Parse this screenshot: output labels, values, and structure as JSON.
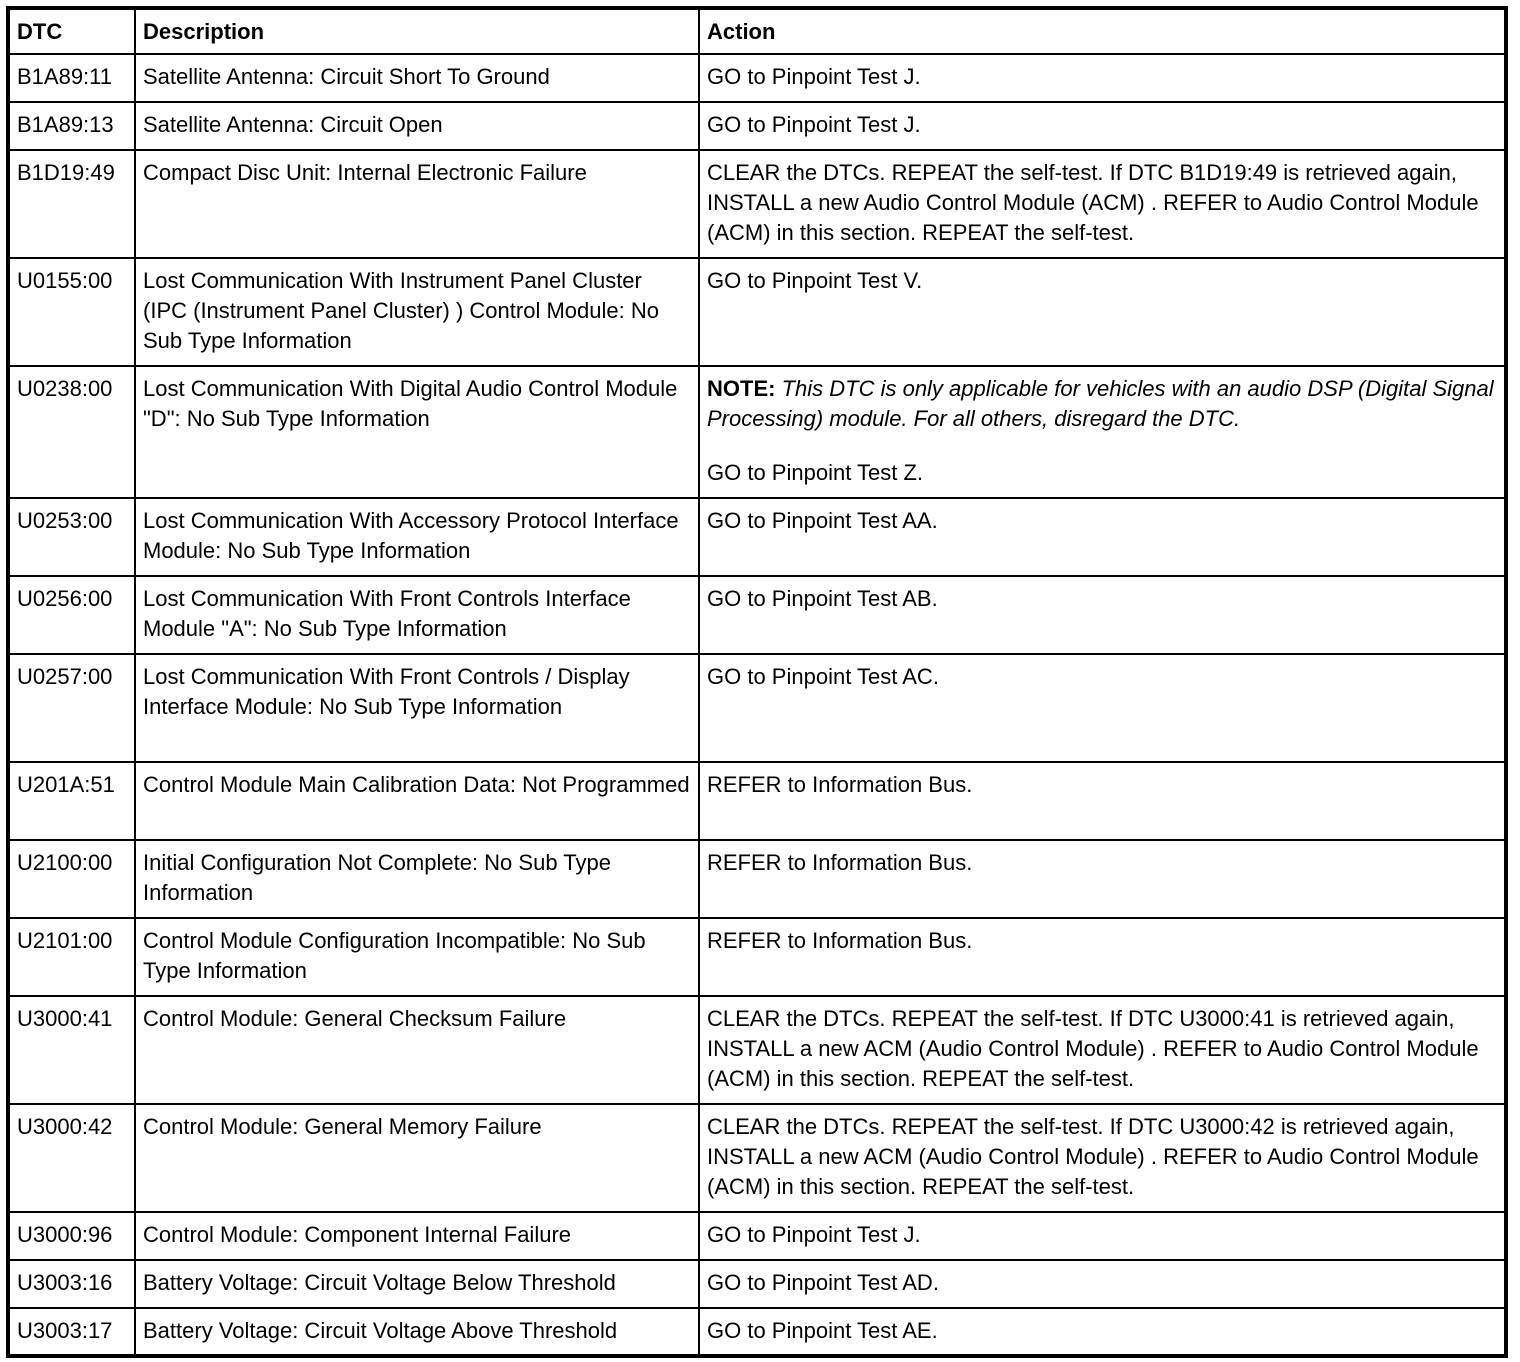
{
  "table": {
    "headers": [
      "DTC",
      "Description",
      "Action"
    ],
    "rows": [
      {
        "dtc": "B1A89:11",
        "description": "Satellite Antenna: Circuit Short To Ground",
        "action": "GO to Pinpoint Test J."
      },
      {
        "dtc": "B1A89:13",
        "description": "Satellite Antenna: Circuit Open",
        "action": "GO to Pinpoint Test J."
      },
      {
        "dtc": "B1D19:49",
        "description": "Compact Disc Unit: Internal Electronic Failure",
        "action": "CLEAR the DTCs. REPEAT the self-test. If DTC B1D19:49 is retrieved again, INSTALL a new Audio Control Module (ACM) . REFER to Audio Control Module (ACM) in this section. REPEAT the self-test."
      },
      {
        "dtc": "U0155:00",
        "description": "Lost Communication With Instrument Panel Cluster (IPC (Instrument Panel Cluster) ) Control Module: No Sub Type Information",
        "action": "GO to Pinpoint Test V."
      },
      {
        "dtc": "U0238:00",
        "description": "Lost Communication With Digital Audio Control Module \"D\": No Sub Type Information",
        "note_label": "NOTE:",
        "note_text": "This DTC is only applicable for vehicles with an audio DSP (Digital Signal Processing) module. For all others, disregard the DTC.",
        "action": "GO to Pinpoint Test Z."
      },
      {
        "dtc": "U0253:00",
        "description": "Lost Communication With Accessory Protocol Interface Module: No Sub Type Information",
        "action": "GO to Pinpoint Test AA."
      },
      {
        "dtc": "U0256:00",
        "description": "Lost Communication With Front Controls Interface Module \"A\": No Sub Type Information",
        "action": "GO to Pinpoint Test AB."
      },
      {
        "dtc": "U0257:00",
        "description": "Lost Communication With Front Controls / Display Interface Module: No Sub Type Information",
        "action": "GO to Pinpoint Test AC."
      },
      {
        "dtc": "U201A:51",
        "description": "Control Module Main Calibration Data: Not Programmed",
        "action": "REFER to Information Bus."
      },
      {
        "dtc": "U2100:00",
        "description": "Initial Configuration Not Complete: No Sub Type Information",
        "action": "REFER to Information Bus."
      },
      {
        "dtc": "U2101:00",
        "description": "Control Module Configuration Incompatible: No Sub Type Information",
        "action": "REFER to Information Bus."
      },
      {
        "dtc": "U3000:41",
        "description": "Control Module: General Checksum Failure",
        "action": "CLEAR the DTCs. REPEAT the self-test. If DTC U3000:41 is retrieved again, INSTALL a new ACM (Audio Control Module) . REFER to Audio Control Module (ACM) in this section. REPEAT the self-test."
      },
      {
        "dtc": "U3000:42",
        "description": "Control Module: General Memory Failure",
        "action": "CLEAR the DTCs. REPEAT the self-test. If DTC U3000:42 is retrieved again, INSTALL a new ACM (Audio Control Module) . REFER to Audio Control Module (ACM) in this section. REPEAT the self-test."
      },
      {
        "dtc": "U3000:96",
        "description": "Control Module: Component Internal Failure",
        "action": "GO to Pinpoint Test J."
      },
      {
        "dtc": "U3003:16",
        "description": "Battery Voltage: Circuit Voltage Below Threshold",
        "action": "GO to Pinpoint Test AD."
      },
      {
        "dtc": "U3003:17",
        "description": "Battery Voltage: Circuit Voltage Above Threshold",
        "action": "GO to Pinpoint Test AE."
      }
    ]
  }
}
